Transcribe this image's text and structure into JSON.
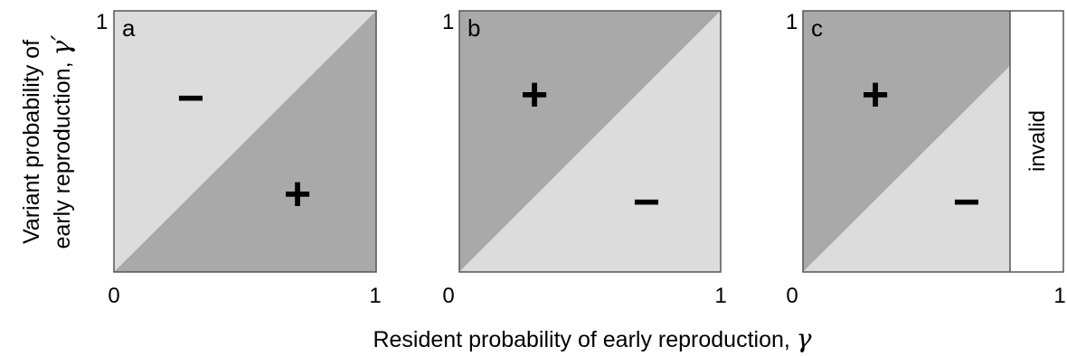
{
  "figure": {
    "y_axis_label_line1": "Variant probability of",
    "y_axis_label_line2": "early reproduction, ",
    "y_axis_symbol": "γ′",
    "x_axis_label": "Resident probability of early reproduction, ",
    "x_axis_symbol": "γ",
    "colors": {
      "dark_region": "#a9a9a9",
      "light_region": "#dcdcdc",
      "invalid_region": "#ffffff",
      "border": "#555555"
    }
  },
  "panels": [
    {
      "label": "a",
      "x_tick_min": "0",
      "x_tick_max": "1",
      "y_tick_max": "1",
      "upper_left_region": {
        "fill": "light",
        "sign": "−"
      },
      "lower_right_region": {
        "fill": "dark",
        "sign": "+"
      }
    },
    {
      "label": "b",
      "x_tick_min": "0",
      "x_tick_max": "1",
      "y_tick_max": "1",
      "upper_left_region": {
        "fill": "dark",
        "sign": "+"
      },
      "lower_right_region": {
        "fill": "light",
        "sign": "−"
      }
    },
    {
      "label": "c",
      "x_tick_min": "0",
      "x_tick_max": "1",
      "y_tick_max": "1",
      "upper_left_region": {
        "fill": "dark",
        "sign": "+"
      },
      "lower_right_region": {
        "fill": "light",
        "sign": "−"
      },
      "invalid_region": {
        "label": "invalid",
        "x_from": 0.8,
        "x_to": 1.0
      }
    }
  ]
}
